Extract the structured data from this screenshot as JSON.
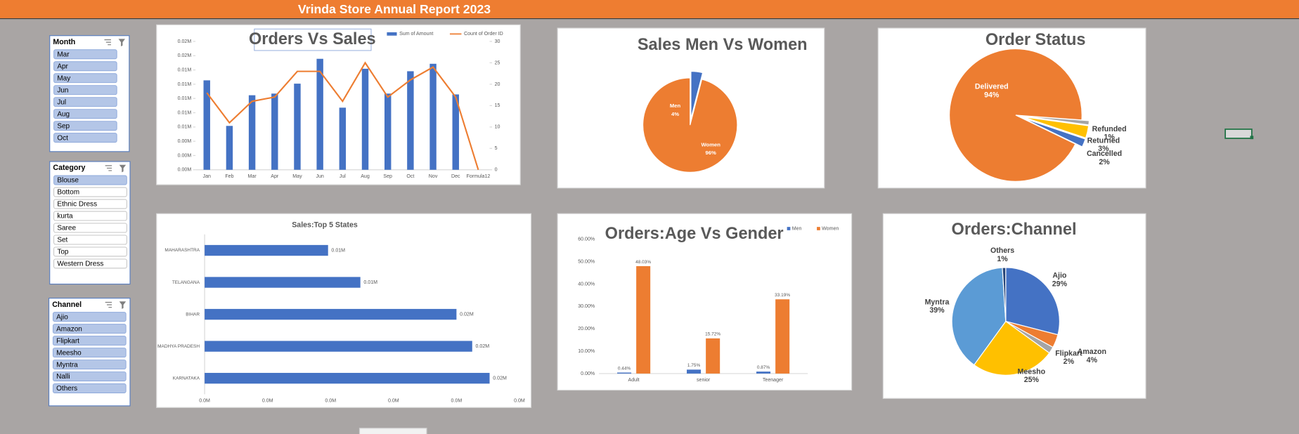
{
  "title": "Vrinda Store Annual Report 2023",
  "slicers": [
    {
      "title": "Month",
      "items": [
        "Mar",
        "Apr",
        "May",
        "Jun",
        "Jul",
        "Aug",
        "Sep",
        "Oct"
      ],
      "selected": [
        true,
        true,
        true,
        true,
        true,
        true,
        true,
        true
      ]
    },
    {
      "title": "Category",
      "items": [
        "Blouse",
        "Bottom",
        "Ethnic Dress",
        "kurta",
        "Saree",
        "Set",
        "Top",
        "Western Dress"
      ],
      "selected": [
        true,
        false,
        false,
        false,
        false,
        false,
        false,
        false
      ]
    },
    {
      "title": "Channel",
      "items": [
        "Ajio",
        "Amazon",
        "Flipkart",
        "Meesho",
        "Myntra",
        "Nalli",
        "Others"
      ],
      "selected": [
        true,
        true,
        true,
        true,
        true,
        true,
        true
      ]
    }
  ],
  "chart_data": [
    {
      "type": "combo",
      "title": "Orders Vs Sales",
      "categories": [
        "Jan",
        "Feb",
        "Mar",
        "Apr",
        "May",
        "Jun",
        "Jul",
        "Aug",
        "Sep",
        "Oct",
        "Nov",
        "Dec",
        "Formula12"
      ],
      "series": [
        {
          "name": "Sum of Amount",
          "type": "bar",
          "color": "#4472c4",
          "values": [
            12542,
            6155,
            10452,
            10684,
            12077,
            15561,
            8710,
            14168,
            10684,
            13819,
            14865,
            10568,
            0
          ]
        },
        {
          "name": "Count of Order ID",
          "type": "line",
          "axis": "y2",
          "color": "#ed7d31",
          "values": [
            18,
            11,
            16,
            17,
            23,
            23,
            16,
            25,
            17,
            21,
            24,
            17,
            0
          ]
        }
      ],
      "ylim": [
        0,
        18000
      ],
      "yticks": [
        {
          "value": 0,
          "label": "0.00M"
        },
        {
          "value": 2000,
          "label": "0.00M"
        },
        {
          "value": 4000,
          "label": "0.00M"
        },
        {
          "value": 6000,
          "label": "0.01M"
        },
        {
          "value": 8000,
          "label": "0.01M"
        },
        {
          "value": 10000,
          "label": "0.01M"
        },
        {
          "value": 12000,
          "label": "0.01M"
        },
        {
          "value": 14000,
          "label": "0.01M"
        },
        {
          "value": 16000,
          "label": "0.02M"
        },
        {
          "value": 18000,
          "label": "0.02M"
        }
      ],
      "y2lim": [
        0,
        30
      ],
      "y2ticks": [
        0,
        5,
        10,
        15,
        20,
        25,
        30
      ]
    },
    {
      "type": "pie",
      "title": "Sales Men Vs Women",
      "categories": [
        "Men",
        "Women"
      ],
      "values": [
        4,
        96
      ],
      "value_labels": [
        "4%",
        "96%"
      ],
      "colors": [
        "#4472c4",
        "#ed7d31"
      ]
    },
    {
      "type": "pie",
      "title": "Order Status",
      "categories": [
        "Cancelled",
        "Delivered",
        "Refunded",
        "Returned"
      ],
      "values": [
        2,
        94,
        1,
        3
      ],
      "value_labels": [
        "2%",
        "94%",
        "1%",
        "3%"
      ],
      "colors": [
        "#4472c4",
        "#ed7d31",
        "#a5a5a5",
        "#ffc000"
      ]
    },
    {
      "type": "bar",
      "orientation": "horizontal",
      "title": "Sales:Top 5 States",
      "categories": [
        "MAHARASHTRA",
        "TELANGANA",
        "BIHAR",
        "MADHYA PRADESH",
        "KARNATAKA"
      ],
      "values": [
        9803,
        12368,
        20000,
        21250,
        22632
      ],
      "value_labels": [
        "0.01M",
        "0.01M",
        "0.02M",
        "0.02M",
        "0.02M"
      ],
      "color": "#4472c4",
      "xlim": [
        0,
        25000
      ],
      "xticks": [
        {
          "value": 0,
          "label": "0.0M"
        },
        {
          "value": 5000,
          "label": "0.0M"
        },
        {
          "value": 10000,
          "label": "0.0M"
        },
        {
          "value": 15000,
          "label": "0.0M"
        },
        {
          "value": 20000,
          "label": "0.0M"
        },
        {
          "value": 25000,
          "label": "0.0M"
        }
      ]
    },
    {
      "type": "bar",
      "title": "Orders:Age Vs Gender",
      "categories": [
        "Adult",
        "senior",
        "Teenager"
      ],
      "series": [
        {
          "name": "Men",
          "color": "#4472c4",
          "values": [
            0.44,
            1.75,
            0.87
          ],
          "value_labels": [
            "0.44%",
            "1.75%",
            "0.87%"
          ]
        },
        {
          "name": "Women",
          "color": "#ed7d31",
          "values": [
            48.03,
            15.72,
            33.19
          ],
          "value_labels": [
            "48.03%",
            "15.72%",
            "33.19%"
          ]
        }
      ],
      "ylim": [
        0,
        60
      ],
      "yticks": [
        {
          "value": 0,
          "label": "0.00%"
        },
        {
          "value": 10,
          "label": "10.00%"
        },
        {
          "value": 20,
          "label": "20.00%"
        },
        {
          "value": 30,
          "label": "30.00%"
        },
        {
          "value": 40,
          "label": "40.00%"
        },
        {
          "value": 50,
          "label": "50.00%"
        },
        {
          "value": 60,
          "label": "60.00%"
        }
      ],
      "legend": "top-right"
    },
    {
      "type": "pie",
      "title": "Orders:Channel",
      "categories": [
        "Ajio",
        "Amazon",
        "Flipkart",
        "Meesho",
        "Myntra",
        "Others"
      ],
      "values": [
        29,
        4,
        2,
        25,
        39,
        1
      ],
      "value_labels": [
        "29%",
        "4%",
        "2%",
        "25%",
        "39%",
        "1%"
      ],
      "colors": [
        "#4472c4",
        "#ed7d31",
        "#a5a5a5",
        "#ffc000",
        "#5b9bd5",
        "#264478"
      ]
    }
  ]
}
